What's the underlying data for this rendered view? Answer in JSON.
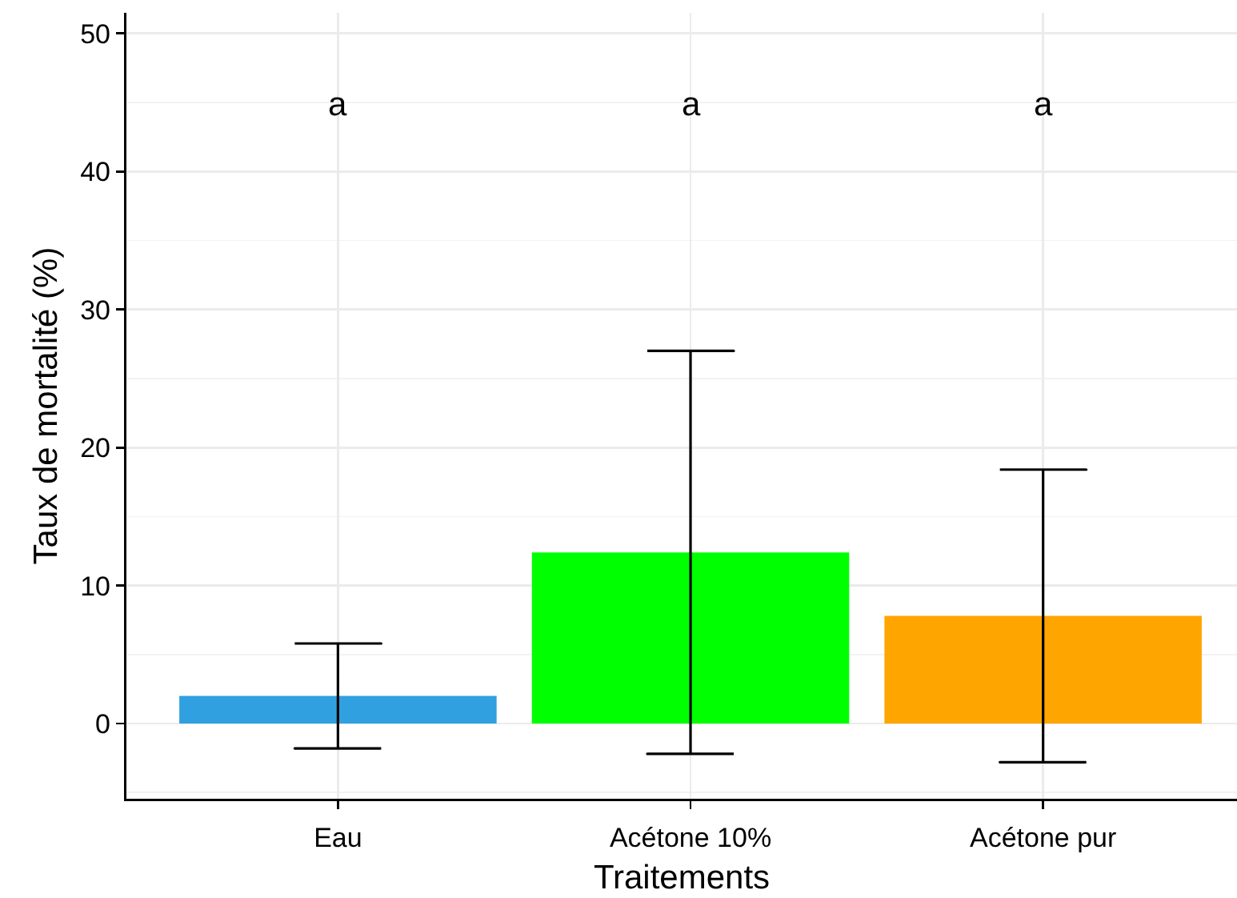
{
  "chart_data": {
    "type": "bar",
    "xlabel": "Traitements",
    "ylabel": "Taux de mortalité (%)",
    "categories": [
      "Eau",
      "Acétone 10%",
      "Acétone pur"
    ],
    "values": [
      2.0,
      12.4,
      7.8
    ],
    "colors": [
      "#30a0e0",
      "#00ff00",
      "#ffa500"
    ],
    "errors": [
      3.8,
      14.6,
      10.6
    ],
    "ylim": [
      -5.45,
      51.5
    ],
    "yticks": [
      {
        "value": -5,
        "label": null
      },
      0,
      {
        "value": 5,
        "label": null
      },
      10,
      {
        "value": 15,
        "label": null
      },
      20,
      {
        "value": 25,
        "label": null
      },
      30,
      {
        "value": 35,
        "label": null
      },
      40,
      {
        "value": 45,
        "label": null
      },
      50
    ],
    "grid": true,
    "annotations": [
      "a",
      "a",
      "a"
    ]
  }
}
